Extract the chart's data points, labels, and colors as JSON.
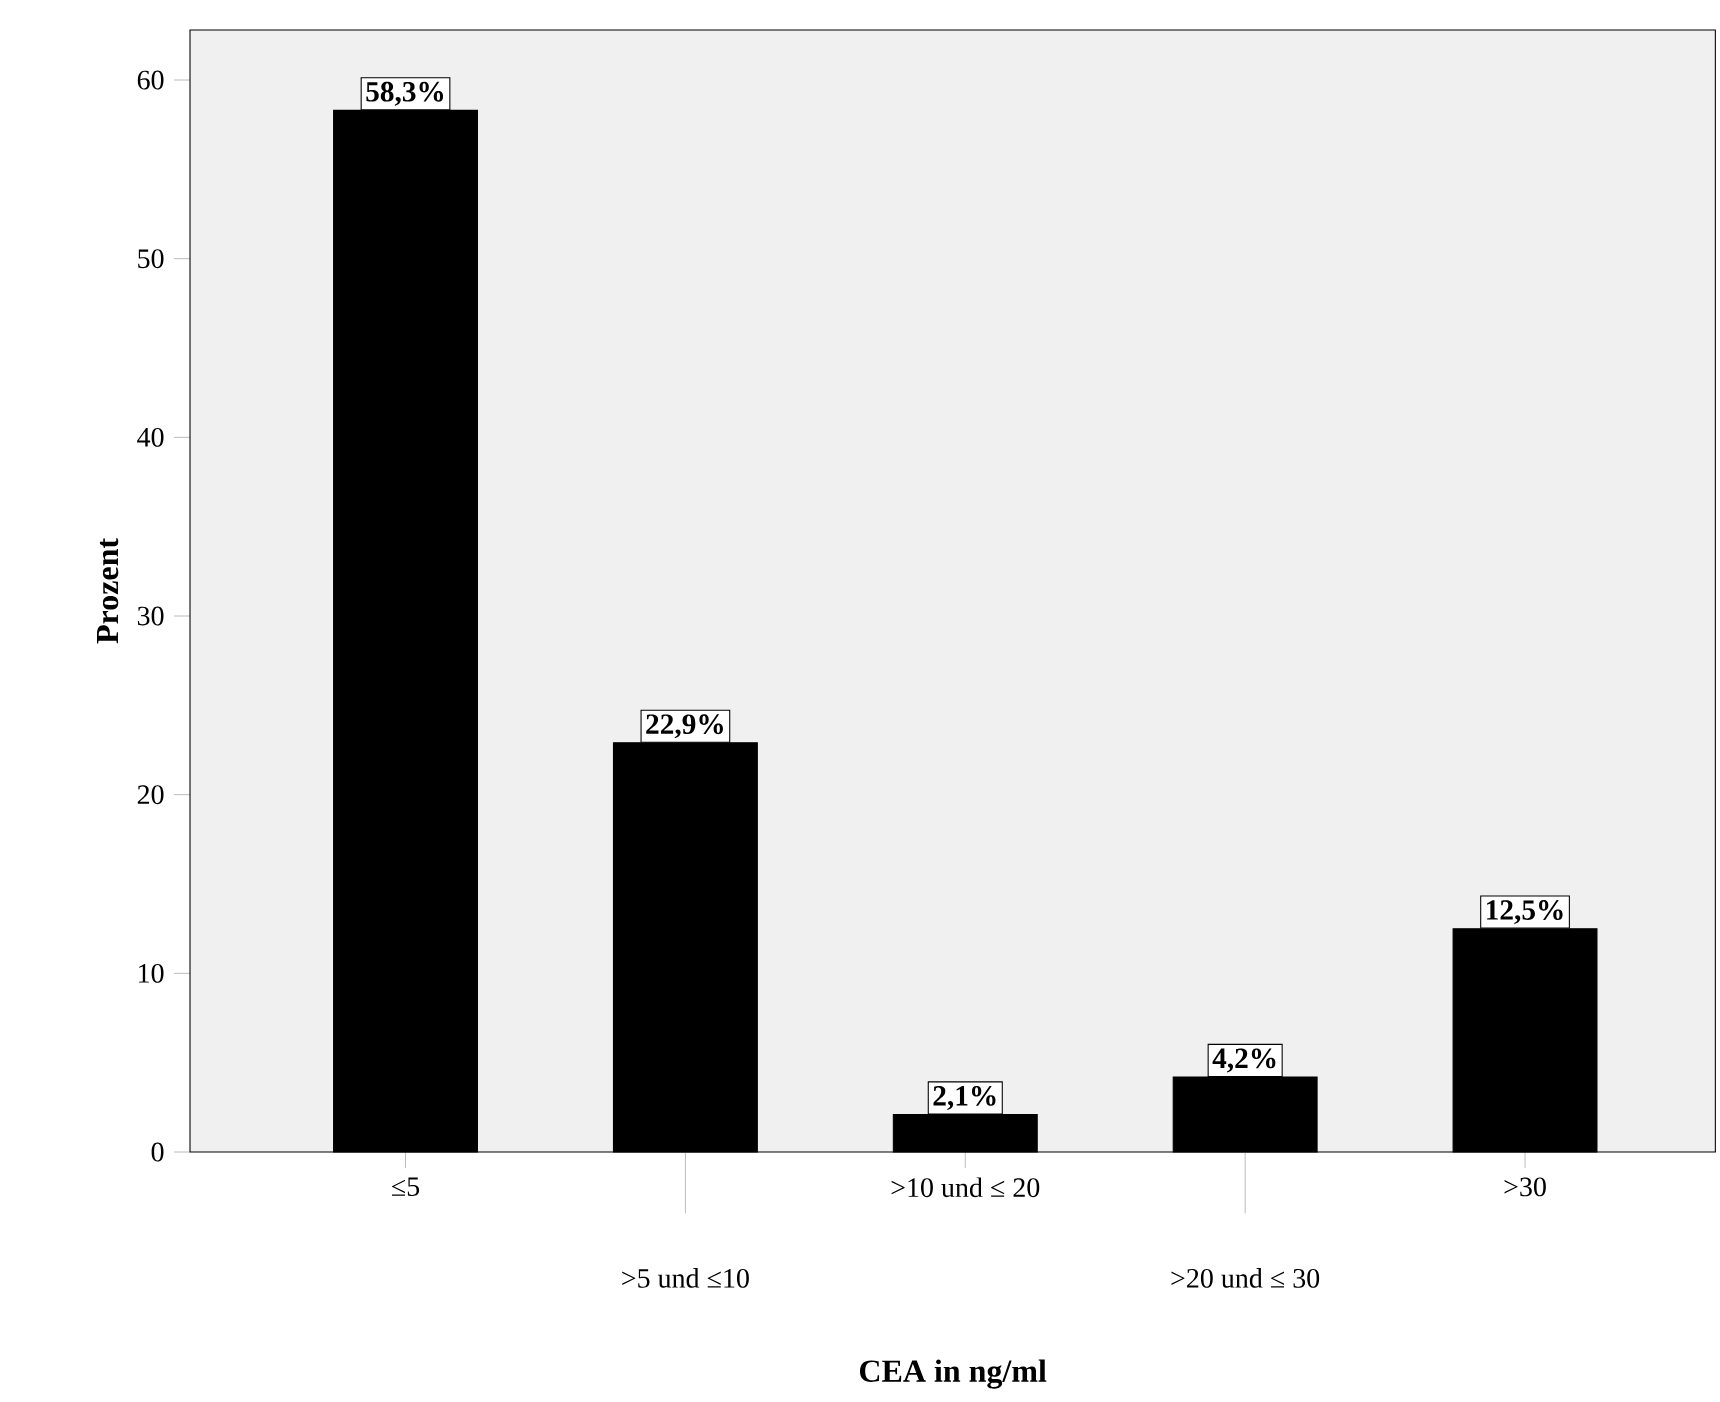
{
  "chart_data": {
    "type": "bar",
    "xlabel": "CEA in ng/ml",
    "ylabel": "Prozent",
    "categories": [
      "≤5",
      ">5 und ≤10",
      ">10 und ≤ 20",
      ">20 und ≤ 30",
      ">30"
    ],
    "values": [
      58.3,
      22.9,
      2.1,
      4.2,
      12.5
    ],
    "value_labels": [
      "58,3%",
      "22,9%",
      "2,1%",
      "4,2%",
      "12,5%"
    ],
    "color": "#000000",
    "ylim": [
      0,
      62.8
    ],
    "yticks": [
      0,
      10,
      20,
      30,
      40,
      50,
      60
    ]
  }
}
